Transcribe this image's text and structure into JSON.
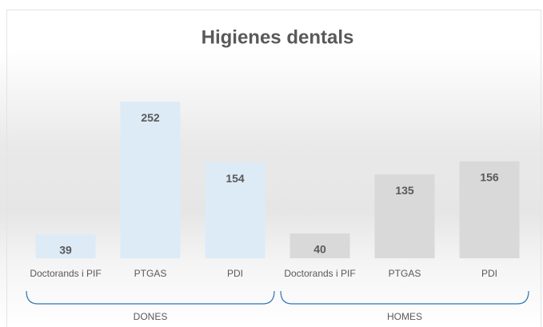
{
  "chart_data": {
    "type": "bar",
    "title": "Higienes dentals",
    "groups": [
      {
        "name": "DONES",
        "color": "#ddebf7",
        "categories": [
          "Doctorands i PIF",
          "PTGAS",
          "PDI"
        ],
        "values": [
          39,
          252,
          154
        ]
      },
      {
        "name": "HOMES",
        "color": "#d9d9d9",
        "categories": [
          "Doctorands i PIF",
          "PTGAS",
          "PDI"
        ],
        "values": [
          40,
          135,
          156
        ]
      }
    ],
    "ylim": [
      0,
      300
    ]
  }
}
